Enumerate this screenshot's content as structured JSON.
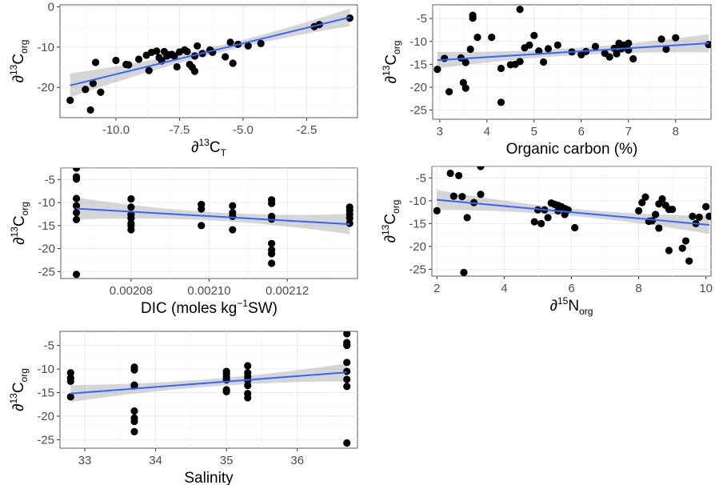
{
  "chart_data": [
    {
      "type": "scatter",
      "xlabel": {
        "base": "∂",
        "sup": "13",
        "main": "C",
        "sub": "T"
      },
      "ylabel": {
        "base": "∂",
        "sup": "13",
        "main": "C",
        "sub": "org"
      },
      "xlim": [
        -12.2,
        -0.5
      ],
      "ylim": [
        -27.5,
        0.5
      ],
      "xticks": [
        -10.0,
        -7.5,
        -5.0,
        -2.5
      ],
      "xtick_labels": [
        "-10.0",
        "-7.5",
        "-5.0",
        "-2.5"
      ],
      "yticks": [
        -20,
        -10,
        0
      ],
      "ytick_labels": [
        "-20",
        "-10",
        "0"
      ],
      "fit": {
        "x": [
          -11.8,
          -0.8
        ],
        "y": [
          -19.5,
          -2.6
        ],
        "ci": [
          3.0,
          0.9,
          2.2
        ]
      },
      "points": [
        [
          -11.8,
          -23.2
        ],
        [
          -11.2,
          -20.5
        ],
        [
          -11.0,
          -25.6
        ],
        [
          -10.9,
          -19.0
        ],
        [
          -10.8,
          -13.8
        ],
        [
          -10.6,
          -21.2
        ],
        [
          -10.0,
          -13.3
        ],
        [
          -9.6,
          -14.3
        ],
        [
          -9.5,
          -14.4
        ],
        [
          -9.1,
          -13.0
        ],
        [
          -8.8,
          -12.0
        ],
        [
          -8.7,
          -15.8
        ],
        [
          -8.6,
          -11.3
        ],
        [
          -8.4,
          -11.0
        ],
        [
          -8.3,
          -12.6
        ],
        [
          -8.2,
          -13.4
        ],
        [
          -8.1,
          -11.1
        ],
        [
          -8.0,
          -12.2
        ],
        [
          -7.9,
          -11.9
        ],
        [
          -7.8,
          -11.8
        ],
        [
          -7.7,
          -12.2
        ],
        [
          -7.6,
          -14.9
        ],
        [
          -7.5,
          -11.2
        ],
        [
          -7.3,
          -10.7
        ],
        [
          -7.2,
          -11.1
        ],
        [
          -7.1,
          -14.3
        ],
        [
          -7.0,
          -15.0
        ],
        [
          -6.9,
          -16.0
        ],
        [
          -6.9,
          -12.2
        ],
        [
          -6.8,
          -9.7
        ],
        [
          -6.6,
          -11.6
        ],
        [
          -6.3,
          -10.7
        ],
        [
          -6.2,
          -11.3
        ],
        [
          -5.7,
          -12.4
        ],
        [
          -5.5,
          -8.8
        ],
        [
          -5.4,
          -14.0
        ],
        [
          -5.2,
          -9.3
        ],
        [
          -4.8,
          -9.7
        ],
        [
          -4.3,
          -9.1
        ],
        [
          -2.2,
          -4.9
        ],
        [
          -2.0,
          -4.4
        ],
        [
          -0.8,
          -2.8
        ]
      ]
    },
    {
      "type": "scatter",
      "xlabel": {
        "base": "",
        "sup": "",
        "main": "Organic  carbon (%)",
        "sub": ""
      },
      "ylabel": {
        "base": "∂",
        "sup": "13",
        "main": "C",
        "sub": "org"
      },
      "xlim": [
        2.85,
        8.75
      ],
      "ylim": [
        -27.0,
        -2.0
      ],
      "xticks": [
        3,
        4,
        5,
        6,
        7,
        8
      ],
      "xtick_labels": [
        "3",
        "4",
        "5",
        "6",
        "7",
        "8"
      ],
      "yticks": [
        -25,
        -20,
        -15,
        -10,
        -5
      ],
      "ytick_labels": [
        "-25",
        "-20",
        "-15",
        "-10",
        "-5"
      ],
      "fit": {
        "x": [
          2.95,
          8.7
        ],
        "y": [
          -14.1,
          -10.4
        ],
        "ci": [
          1.8,
          0.8,
          2.0
        ]
      },
      "points": [
        [
          2.95,
          -16.1
        ],
        [
          3.1,
          -13.7
        ],
        [
          3.2,
          -21.0
        ],
        [
          3.45,
          -13.6
        ],
        [
          3.5,
          -19.0
        ],
        [
          3.55,
          -20.2
        ],
        [
          3.55,
          -14.6
        ],
        [
          3.65,
          -11.7
        ],
        [
          3.7,
          -4.9
        ],
        [
          3.7,
          -4.3
        ],
        [
          3.8,
          -9.1
        ],
        [
          4.1,
          -9.1
        ],
        [
          4.3,
          -23.3
        ],
        [
          4.3,
          -15.9
        ],
        [
          4.5,
          -15.1
        ],
        [
          4.6,
          -15.0
        ],
        [
          4.7,
          -14.4
        ],
        [
          4.7,
          -3.0
        ],
        [
          4.8,
          -11.4
        ],
        [
          4.9,
          -10.8
        ],
        [
          5.0,
          -8.7
        ],
        [
          5.1,
          -12.1
        ],
        [
          5.2,
          -14.5
        ],
        [
          5.3,
          -11.6
        ],
        [
          5.5,
          -10.8
        ],
        [
          5.8,
          -12.3
        ],
        [
          6.0,
          -12.9
        ],
        [
          6.1,
          -12.2
        ],
        [
          6.3,
          -11.1
        ],
        [
          6.5,
          -12.6
        ],
        [
          6.6,
          -13.4
        ],
        [
          6.7,
          -11.5
        ],
        [
          6.75,
          -12.7
        ],
        [
          6.8,
          -10.4
        ],
        [
          6.85,
          -11.6
        ],
        [
          6.9,
          -10.8
        ],
        [
          7.0,
          -11.9
        ],
        [
          7.0,
          -10.4
        ],
        [
          7.1,
          -13.8
        ],
        [
          7.7,
          -9.5
        ],
        [
          7.8,
          -11.7
        ],
        [
          8.0,
          -9.2
        ],
        [
          8.7,
          -10.7
        ]
      ]
    },
    {
      "type": "scatter",
      "xlabel": {
        "base": "",
        "sup": "",
        "main": "DIC (moles kg",
        "sub": "",
        "sup2": "−1",
        "tail": "SW)"
      },
      "ylabel": {
        "base": "∂",
        "sup": "13",
        "main": "C",
        "sub": "org"
      },
      "xlim": [
        0.002062,
        0.002138
      ],
      "ylim": [
        -26.5,
        -2.5
      ],
      "xticks": [
        0.00208,
        0.0021,
        0.00212
      ],
      "xtick_labels": [
        "0.00208",
        "0.00210",
        "0.00212"
      ],
      "yticks": [
        -25,
        -20,
        -15,
        -10,
        -5
      ],
      "ytick_labels": [
        "-25",
        "-20",
        "-15",
        "-10",
        "-5"
      ],
      "fit": {
        "x": [
          0.002066,
          0.002136
        ],
        "y": [
          -11.3,
          -14.7
        ],
        "ci": [
          2.4,
          0.9,
          2.2
        ]
      },
      "points": [
        [
          0.002066,
          -2.5
        ],
        [
          0.002066,
          -4.4
        ],
        [
          0.002066,
          -4.9
        ],
        [
          0.002066,
          -9.1
        ],
        [
          0.002066,
          -10.7
        ],
        [
          0.002066,
          -12.2
        ],
        [
          0.002066,
          -13.7
        ],
        [
          0.002066,
          -25.6
        ],
        [
          0.00208,
          -9.2
        ],
        [
          0.00208,
          -11.0
        ],
        [
          0.00208,
          -12.6
        ],
        [
          0.00208,
          -13.4
        ],
        [
          0.00208,
          -14.5
        ],
        [
          0.00208,
          -15.0
        ],
        [
          0.00208,
          -15.9
        ],
        [
          0.002098,
          -10.4
        ],
        [
          0.002098,
          -11.4
        ],
        [
          0.002098,
          -15.0
        ],
        [
          0.002106,
          -10.7
        ],
        [
          0.002106,
          -12.2
        ],
        [
          0.002106,
          -13.0
        ],
        [
          0.002106,
          -15.9
        ],
        [
          0.002116,
          -9.4
        ],
        [
          0.002116,
          -10.2
        ],
        [
          0.002116,
          -13.0
        ],
        [
          0.002116,
          -13.6
        ],
        [
          0.002116,
          -18.9
        ],
        [
          0.002116,
          -20.3
        ],
        [
          0.002116,
          -21.1
        ],
        [
          0.002116,
          -23.2
        ],
        [
          0.002136,
          -11.0
        ],
        [
          0.002136,
          -11.7
        ],
        [
          0.002136,
          -12.5
        ],
        [
          0.002136,
          -13.4
        ],
        [
          0.002136,
          -14.5
        ]
      ]
    },
    {
      "type": "scatter",
      "xlabel": {
        "base": "∂",
        "sup": "15",
        "main": "N",
        "sub": "org"
      },
      "ylabel": {
        "base": "∂",
        "sup": "13",
        "main": "C",
        "sub": "org"
      },
      "xlim": [
        1.85,
        10.15
      ],
      "ylim": [
        -26.5,
        -2.5
      ],
      "xticks": [
        2,
        4,
        6,
        8,
        10
      ],
      "xtick_labels": [
        "2",
        "4",
        "6",
        "8",
        "10"
      ],
      "yticks": [
        -25,
        -20,
        -15,
        -10,
        -5
      ],
      "ytick_labels": [
        "-25",
        "-20",
        "-15",
        "-10",
        "-5"
      ],
      "fit": {
        "x": [
          2.0,
          10.1
        ],
        "y": [
          -9.8,
          -15.3
        ],
        "ci": [
          2.2,
          0.8,
          2.0
        ]
      },
      "points": [
        [
          2.0,
          -12.2
        ],
        [
          2.4,
          -4.0
        ],
        [
          2.5,
          -9.0
        ],
        [
          2.65,
          -4.5
        ],
        [
          2.75,
          -9.1
        ],
        [
          2.8,
          -25.7
        ],
        [
          2.9,
          -13.7
        ],
        [
          3.1,
          -10.4
        ],
        [
          3.3,
          -2.5
        ],
        [
          3.3,
          -8.6
        ],
        [
          4.9,
          -14.6
        ],
        [
          5.0,
          -12.0
        ],
        [
          5.1,
          -15.0
        ],
        [
          5.2,
          -12.0
        ],
        [
          5.3,
          -13.7
        ],
        [
          5.4,
          -10.5
        ],
        [
          5.5,
          -10.8
        ],
        [
          5.6,
          -11.0
        ],
        [
          5.6,
          -12.2
        ],
        [
          5.7,
          -11.3
        ],
        [
          5.8,
          -11.7
        ],
        [
          5.8,
          -13.0
        ],
        [
          5.9,
          -12.0
        ],
        [
          6.1,
          -15.9
        ],
        [
          8.0,
          -12.2
        ],
        [
          8.1,
          -10.4
        ],
        [
          8.2,
          -9.2
        ],
        [
          8.3,
          -14.5
        ],
        [
          8.4,
          -14.4
        ],
        [
          8.5,
          -13.0
        ],
        [
          8.6,
          -16.0
        ],
        [
          8.6,
          -10.7
        ],
        [
          8.7,
          -9.6
        ],
        [
          8.8,
          -11.0
        ],
        [
          8.9,
          -20.9
        ],
        [
          8.9,
          -11.9
        ],
        [
          9.0,
          -11.9
        ],
        [
          9.3,
          -20.4
        ],
        [
          9.4,
          -18.8
        ],
        [
          9.5,
          -23.2
        ],
        [
          9.6,
          -13.4
        ],
        [
          9.7,
          -15.0
        ],
        [
          9.8,
          -13.6
        ],
        [
          10.0,
          -11.3
        ],
        [
          10.1,
          -13.4
        ]
      ]
    },
    {
      "type": "scatter",
      "xlabel": {
        "base": "",
        "sup": "",
        "main": "Salinity",
        "sub": ""
      },
      "ylabel": {
        "base": "∂",
        "sup": "13",
        "main": "C",
        "sub": "org"
      },
      "xlim": [
        32.65,
        36.85
      ],
      "ylim": [
        -26.8,
        -2.0
      ],
      "xticks": [
        33,
        34,
        35,
        36
      ],
      "xtick_labels": [
        "33",
        "34",
        "35",
        "36"
      ],
      "yticks": [
        -25,
        -20,
        -15,
        -10,
        -5
      ],
      "ytick_labels": [
        "-25",
        "-20",
        "-15",
        "-10",
        "-5"
      ],
      "fit": {
        "x": [
          32.8,
          36.7
        ],
        "y": [
          -15.2,
          -10.7
        ],
        "ci": [
          1.8,
          0.8,
          1.9
        ]
      },
      "points": [
        [
          32.8,
          -10.8
        ],
        [
          32.8,
          -11.9
        ],
        [
          32.8,
          -12.6
        ],
        [
          32.8,
          -15.9
        ],
        [
          33.7,
          -9.6
        ],
        [
          33.7,
          -10.2
        ],
        [
          33.7,
          -13.4
        ],
        [
          33.7,
          -13.6
        ],
        [
          33.7,
          -18.9
        ],
        [
          33.7,
          -20.4
        ],
        [
          33.7,
          -21.1
        ],
        [
          33.7,
          -23.3
        ],
        [
          35.0,
          -10.5
        ],
        [
          35.0,
          -11.0
        ],
        [
          35.0,
          -11.7
        ],
        [
          35.0,
          -12.3
        ],
        [
          35.0,
          -14.4
        ],
        [
          35.0,
          -14.8
        ],
        [
          35.3,
          -9.3
        ],
        [
          35.3,
          -10.8
        ],
        [
          35.3,
          -11.6
        ],
        [
          35.3,
          -12.4
        ],
        [
          35.3,
          -13.5
        ],
        [
          35.3,
          -15.2
        ],
        [
          35.3,
          -16.1
        ],
        [
          36.7,
          -2.5
        ],
        [
          36.7,
          -4.4
        ],
        [
          36.7,
          -5.0
        ],
        [
          36.7,
          -8.6
        ],
        [
          36.7,
          -10.5
        ],
        [
          36.7,
          -12.2
        ],
        [
          36.7,
          -13.7
        ],
        [
          36.7,
          -25.7
        ]
      ]
    }
  ]
}
